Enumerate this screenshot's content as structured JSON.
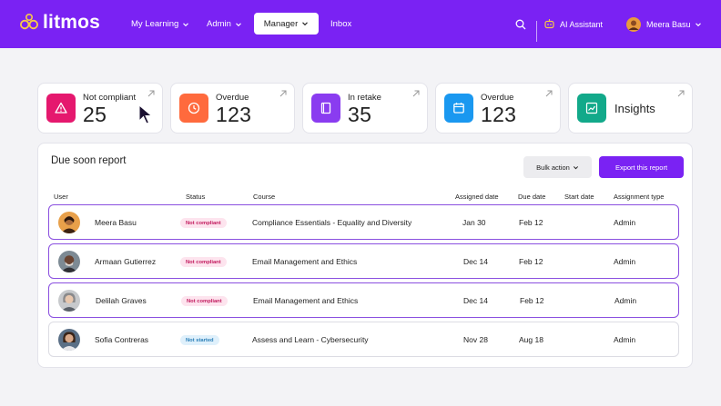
{
  "brand": {
    "name": "litmos"
  },
  "nav": {
    "items": [
      {
        "label": "My Learning",
        "has_menu": true
      },
      {
        "label": "Admin",
        "has_menu": true
      },
      {
        "label": "Manager",
        "has_menu": true,
        "active": true
      },
      {
        "label": "Inbox",
        "has_menu": false
      }
    ],
    "assistant_label": "AI Assistant",
    "user_name": "Meera Basu"
  },
  "stats": [
    {
      "label": "Not compliant",
      "value": "25",
      "icon": "warning-triangle-icon",
      "color": "#e5186e"
    },
    {
      "label": "Overdue",
      "value": "123",
      "icon": "clock-icon",
      "color": "#ff6a3d"
    },
    {
      "label": "In retake",
      "value": "35",
      "icon": "book-icon",
      "color": "#8a3cf0"
    },
    {
      "label": "Overdue",
      "value": "123",
      "icon": "calendar-icon",
      "color": "#1a98f0"
    },
    {
      "label": "Insights",
      "icon": "chart-line-icon",
      "color": "#12a98a"
    }
  ],
  "report": {
    "title": "Due soon report",
    "bulk_action_label": "Bulk action",
    "export_label": "Export this report",
    "columns": [
      "User",
      "Status",
      "Course",
      "Assigned date",
      "Due date",
      "Start date",
      "Assignment type"
    ],
    "rows": [
      {
        "user": "Meera Basu",
        "status": "Not compliant",
        "status_kind": "not-compliant",
        "course": "Compliance Essentials - Equality and Diversity",
        "assigned": "Jan 30",
        "due": "Feb 12",
        "start": "",
        "type": "Admin",
        "selected": true
      },
      {
        "user": "Armaan Gutierrez",
        "status": "Not compliant",
        "status_kind": "not-compliant",
        "course": "Email Management and Ethics",
        "assigned": "Dec 14",
        "due": "Feb 12",
        "start": "",
        "type": "Admin",
        "selected": true
      },
      {
        "user": "Delilah Graves",
        "status": "Not compliant",
        "status_kind": "not-compliant",
        "course": "Email Management and Ethics",
        "assigned": "Dec 14",
        "due": "Feb 12",
        "start": "",
        "type": "Admin",
        "selected": true
      },
      {
        "user": "Sofia Contreras",
        "status": "Not started",
        "status_kind": "not-started",
        "course": "Assess and Learn - Cybersecurity",
        "assigned": "Nov 28",
        "due": "Aug 18",
        "start": "",
        "type": "Admin",
        "selected": false
      }
    ]
  },
  "colors": {
    "brand_purple": "#7a22f3",
    "selected_border": "#8a4fe0"
  }
}
